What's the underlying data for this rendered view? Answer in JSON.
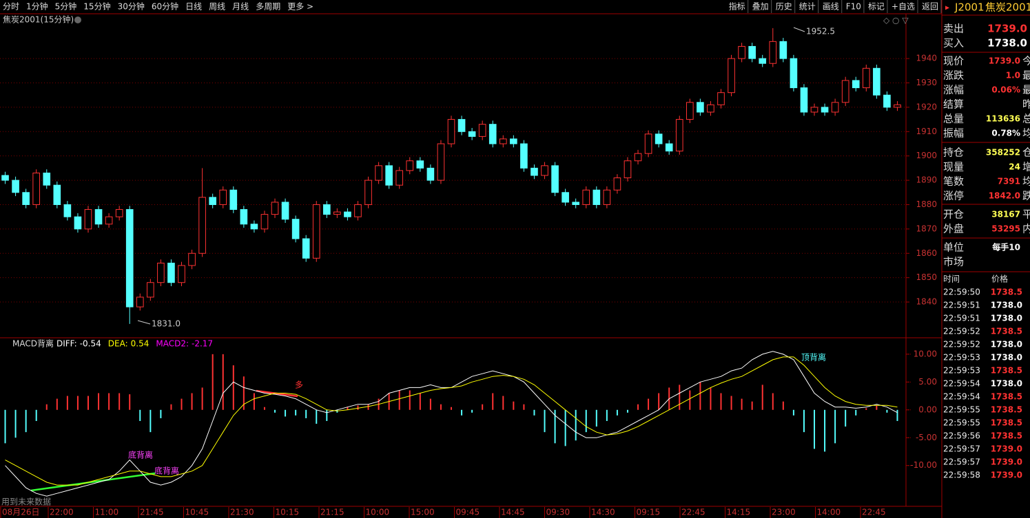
{
  "toolbar": {
    "periods": [
      "分时",
      "1分钟",
      "5分钟",
      "15分钟",
      "30分钟",
      "60分钟",
      "日线",
      "周线",
      "月线",
      "多周期",
      "更多 >"
    ],
    "active": 3,
    "tools": [
      "指标",
      "叠加",
      "历史",
      "统计",
      "画线",
      "F10",
      "标记",
      "+自选",
      "返回"
    ]
  },
  "main_chart": {
    "title": "焦炭2001(15分钟)",
    "ylim": [
      1825.6,
      1958.4
    ],
    "yticks": [
      1840,
      1850,
      1860,
      1870,
      1880,
      1890,
      1900,
      1910,
      1920,
      1930,
      1940
    ],
    "up_color": "#ff3232",
    "down_color": "#54ffff",
    "high_label": "1952.5",
    "low_label": "1831.0",
    "candles": [
      [
        1892,
        1893.5,
        1888.5,
        1890
      ],
      [
        1890,
        1891.5,
        1883.5,
        1885
      ],
      [
        1885,
        1886.5,
        1878.5,
        1880
      ],
      [
        1880,
        1894.5,
        1878.5,
        1893
      ],
      [
        1893,
        1894.5,
        1886.5,
        1888
      ],
      [
        1888,
        1889.5,
        1878.5,
        1880
      ],
      [
        1880,
        1881.5,
        1873.5,
        1875
      ],
      [
        1875,
        1876.5,
        1868.5,
        1870
      ],
      [
        1870,
        1879.5,
        1868.5,
        1878
      ],
      [
        1878,
        1879.5,
        1870.5,
        1872
      ],
      [
        1872,
        1876.5,
        1870.5,
        1875
      ],
      [
        1875,
        1879.5,
        1873.5,
        1878
      ],
      [
        1878,
        1879.5,
        1831,
        1838
      ],
      [
        1838,
        1843.5,
        1836.5,
        1842
      ],
      [
        1842,
        1849.5,
        1840.5,
        1848
      ],
      [
        1848,
        1857.5,
        1846.5,
        1856
      ],
      [
        1856,
        1857.5,
        1846.5,
        1848
      ],
      [
        1848,
        1856.5,
        1846.5,
        1855
      ],
      [
        1855,
        1861.5,
        1853.5,
        1860
      ],
      [
        1860,
        1895,
        1858.5,
        1883
      ],
      [
        1883,
        1884.5,
        1878.5,
        1880
      ],
      [
        1880,
        1887.5,
        1878.5,
        1886
      ],
      [
        1886,
        1887.5,
        1876.5,
        1878
      ],
      [
        1878,
        1879.5,
        1870.5,
        1872
      ],
      [
        1872,
        1873.5,
        1868.5,
        1870
      ],
      [
        1870,
        1877.5,
        1868.5,
        1876
      ],
      [
        1876,
        1882.5,
        1874.5,
        1881
      ],
      [
        1881,
        1882.5,
        1872.5,
        1874
      ],
      [
        1874,
        1875.5,
        1864.5,
        1866
      ],
      [
        1866,
        1867.5,
        1856.5,
        1858
      ],
      [
        1858,
        1881.5,
        1856.5,
        1880
      ],
      [
        1880,
        1881.5,
        1874.5,
        1876
      ],
      [
        1876,
        1878.5,
        1874.5,
        1877
      ],
      [
        1877,
        1878.5,
        1873.5,
        1875
      ],
      [
        1875,
        1881.5,
        1873.5,
        1880
      ],
      [
        1880,
        1891.5,
        1878.5,
        1890
      ],
      [
        1890,
        1897.5,
        1888.5,
        1896
      ],
      [
        1896,
        1897.5,
        1886.5,
        1888
      ],
      [
        1888,
        1895.5,
        1886.5,
        1894
      ],
      [
        1894,
        1899.5,
        1892.5,
        1898
      ],
      [
        1898,
        1899.5,
        1893.5,
        1895
      ],
      [
        1895,
        1896.5,
        1888.5,
        1890
      ],
      [
        1890,
        1906.5,
        1888.5,
        1905
      ],
      [
        1905,
        1916.5,
        1903.5,
        1915
      ],
      [
        1915,
        1916.5,
        1908.5,
        1910
      ],
      [
        1910,
        1911.5,
        1906.5,
        1908
      ],
      [
        1908,
        1914.5,
        1906.5,
        1913
      ],
      [
        1913,
        1914.5,
        1903.5,
        1905
      ],
      [
        1905,
        1908.5,
        1903.5,
        1907
      ],
      [
        1907,
        1908.5,
        1903.5,
        1905
      ],
      [
        1905,
        1906.5,
        1893.5,
        1895
      ],
      [
        1895,
        1896.5,
        1890.5,
        1892
      ],
      [
        1892,
        1897.5,
        1890.5,
        1896
      ],
      [
        1896,
        1897.5,
        1883.5,
        1885
      ],
      [
        1885,
        1886.5,
        1879.5,
        1881
      ],
      [
        1881,
        1882.5,
        1878.5,
        1880
      ],
      [
        1880,
        1887.5,
        1878.5,
        1886
      ],
      [
        1886,
        1887.5,
        1878.5,
        1880
      ],
      [
        1880,
        1887.5,
        1878.5,
        1886
      ],
      [
        1886,
        1892.5,
        1884.5,
        1891
      ],
      [
        1891,
        1899.5,
        1889.5,
        1898
      ],
      [
        1898,
        1902.5,
        1896.5,
        1901
      ],
      [
        1901,
        1910.5,
        1899.5,
        1909
      ],
      [
        1909,
        1910.5,
        1903.5,
        1905
      ],
      [
        1905,
        1906.5,
        1900.5,
        1902
      ],
      [
        1902,
        1916.5,
        1900.5,
        1915
      ],
      [
        1915,
        1923.5,
        1913.5,
        1922
      ],
      [
        1922,
        1923.5,
        1916.5,
        1918
      ],
      [
        1918,
        1922.5,
        1916.5,
        1921
      ],
      [
        1921,
        1927.5,
        1919.5,
        1926
      ],
      [
        1926,
        1941.5,
        1924.5,
        1940
      ],
      [
        1940,
        1946.5,
        1938.5,
        1945
      ],
      [
        1945,
        1946.5,
        1938.5,
        1940
      ],
      [
        1940,
        1941.5,
        1936.5,
        1938
      ],
      [
        1938,
        1952.5,
        1936.5,
        1947
      ],
      [
        1947,
        1948.5,
        1938.5,
        1940
      ],
      [
        1940,
        1941.5,
        1926.5,
        1928
      ],
      [
        1928,
        1929.5,
        1916.5,
        1918
      ],
      [
        1918,
        1921.5,
        1916.5,
        1920
      ],
      [
        1920,
        1921.5,
        1916.5,
        1918
      ],
      [
        1918,
        1923.5,
        1916.5,
        1922
      ],
      [
        1922,
        1932.5,
        1920.5,
        1931
      ],
      [
        1931,
        1932.5,
        1926.5,
        1928
      ],
      [
        1928,
        1937.5,
        1926.5,
        1936
      ],
      [
        1936,
        1937.5,
        1923.5,
        1925
      ],
      [
        1925,
        1926.5,
        1918.5,
        1920
      ],
      [
        1920,
        1922.5,
        1918.5,
        1921
      ]
    ]
  },
  "macd": {
    "title": "MACD背离",
    "indicators": [
      {
        "name": "DIFF:",
        "value": -0.54,
        "color": "#ffffff"
      },
      {
        "name": "DEA:",
        "value": 0.54,
        "color": "#ffff00"
      },
      {
        "name": "MACD2:",
        "value": -2.17,
        "color": "#ff00ff"
      }
    ],
    "ylim": [
      -17.2,
      12.7
    ],
    "yticks": [
      {
        "value": 10,
        "label": "10.00"
      },
      {
        "value": 5,
        "label": "5.00"
      },
      {
        "value": 0,
        "label": "0.00"
      },
      {
        "value": -5,
        "label": "-5.00"
      },
      {
        "value": -10,
        "label": "-10.00"
      }
    ],
    "histogram": [
      -6,
      -5,
      -4,
      -2,
      1,
      2,
      2.5,
      2.5,
      2.5,
      3,
      3,
      3,
      2.8,
      -2,
      -4,
      -1.5,
      1,
      2,
      3,
      4,
      10,
      10,
      8,
      6,
      3,
      0.5,
      -0.5,
      -1.2,
      -1,
      -1.5,
      -2.5,
      -2,
      -0.5,
      0.5,
      0.8,
      1,
      2,
      3,
      3.5,
      3.5,
      3,
      2,
      1,
      0.5,
      -1,
      -0.5,
      1,
      3,
      2.5,
      1.5,
      1,
      -1,
      -4,
      -6,
      -6.5,
      -5.5,
      -4,
      -3,
      -2,
      -1,
      -0.5,
      1,
      2,
      3,
      4,
      4.5,
      3.5,
      5,
      4,
      3,
      2.5,
      2,
      1.5,
      4.5,
      3,
      1.5,
      -1,
      -4,
      -7,
      -7.5,
      -6,
      -3,
      -1,
      0.3,
      0.8,
      -0.5,
      -2
    ],
    "diff": [
      -10,
      -12,
      -14,
      -15,
      -15.5,
      -15,
      -14.5,
      -14,
      -13.5,
      -13,
      -12.5,
      -11,
      -9,
      -11,
      -13,
      -13.5,
      -13,
      -12,
      -10,
      -7,
      -2,
      3,
      5,
      4,
      3.5,
      3,
      2.8,
      2.5,
      2,
      1,
      0,
      -0.5,
      0,
      0.5,
      1,
      1,
      1.5,
      3,
      3.5,
      4,
      4,
      4.5,
      4,
      4,
      5,
      6,
      6.5,
      7,
      6.5,
      6,
      5,
      3,
      1,
      -1,
      -2.5,
      -4,
      -5,
      -5,
      -4.5,
      -4,
      -3,
      -2,
      -1,
      0,
      2,
      3,
      4,
      5,
      5.5,
      6,
      7,
      7.5,
      9,
      10,
      10.5,
      10,
      9,
      6,
      3,
      1.5,
      0.5,
      0.5,
      0.3,
      0.5,
      1,
      0.5,
      -0.5
    ],
    "dea": [
      -9,
      -10,
      -11,
      -12,
      -13,
      -13.5,
      -13.5,
      -13.5,
      -13,
      -12.5,
      -12,
      -11.5,
      -11,
      -11,
      -11.5,
      -12,
      -12,
      -11.5,
      -11,
      -10,
      -7,
      -4,
      -1,
      1,
      2,
      2.5,
      3,
      3,
      2.8,
      2,
      1,
      0,
      -0.2,
      0,
      0.3,
      0.6,
      1,
      1.5,
      2,
      2.5,
      3,
      3.5,
      3.8,
      4,
      4.3,
      5,
      5.5,
      6,
      6.2,
      6,
      5.5,
      4.5,
      3,
      1.5,
      0,
      -1.5,
      -3,
      -4,
      -4.5,
      -4.3,
      -3.8,
      -3,
      -2,
      -1,
      0,
      1,
      2,
      3,
      4,
      4.8,
      5.5,
      6,
      7,
      8,
      9,
      9.5,
      9.5,
      8,
      6,
      4,
      2.5,
      1.5,
      1,
      0.8,
      0.8,
      0.8,
      0.5
    ],
    "annotations": [
      "多",
      "底背离",
      "底背离",
      "顶背离",
      "用到未来数据"
    ]
  },
  "time_axis": [
    "08月26日",
    "22:00",
    "11:00",
    "21:45",
    "10:45",
    "21:30",
    "10:15",
    "21:15",
    "10:00",
    "15:00",
    "09:45",
    "14:45",
    "09:30",
    "14:30",
    "09:15",
    "22:45",
    "14:15",
    "23:00",
    "14:00",
    "22:45"
  ],
  "quote": {
    "code": "J2001",
    "name": "焦炭2001",
    "book": [
      [
        "卖出",
        "1739.0",
        "#ff3232"
      ],
      [
        "买入",
        "1738.0",
        "#ffffff"
      ]
    ],
    "rows": [
      [
        "现价",
        "1739.0",
        "今",
        "#ff3232"
      ],
      [
        "涨跌",
        "1.0",
        "最",
        "#ff3232"
      ],
      [
        "涨幅",
        "0.06%",
        "最",
        "#ff3232"
      ],
      [
        "结算",
        "",
        "昨",
        "#ffffff"
      ],
      [
        "总量",
        "113636",
        "总",
        "#ffff54"
      ],
      [
        "振幅",
        "0.78%",
        "均",
        "#ffffff"
      ],
      [
        "持仓",
        "358252",
        "仓",
        "#ffff54"
      ],
      [
        "现量",
        "24",
        "增",
        "#ffff54"
      ],
      [
        "笔数",
        "7391",
        "均",
        "#ff3232"
      ],
      [
        "涨停",
        "1842.0",
        "跌",
        "#ff3232"
      ],
      [
        "开仓",
        "38167",
        "平",
        "#ffff54"
      ],
      [
        "外盘",
        "53295",
        "内",
        "#ff3232"
      ],
      [
        "单位",
        "每手10",
        "",
        "#ffffff"
      ],
      [
        "市场",
        "",
        "",
        "#ffffff"
      ]
    ],
    "ticks_header": [
      "时间",
      "价格"
    ],
    "ticks": [
      [
        "22:59:50",
        "1738.5",
        "#ff3232"
      ],
      [
        "22:59:51",
        "1738.0",
        "#ffffff"
      ],
      [
        "22:59:51",
        "1738.0",
        "#ffffff"
      ],
      [
        "22:59:52",
        "1738.5",
        "#ff3232"
      ],
      [
        "22:59:52",
        "1738.0",
        "#ffffff"
      ],
      [
        "22:59:53",
        "1738.0",
        "#ffffff"
      ],
      [
        "22:59:53",
        "1738.5",
        "#ff3232"
      ],
      [
        "22:59:54",
        "1738.0",
        "#ffffff"
      ],
      [
        "22:59:54",
        "1738.5",
        "#ff3232"
      ],
      [
        "22:59:55",
        "1738.5",
        "#ff3232"
      ],
      [
        "22:59:55",
        "1738.5",
        "#ff3232"
      ],
      [
        "22:59:56",
        "1738.5",
        "#ff3232"
      ],
      [
        "22:59:57",
        "1739.0",
        "#ff3232"
      ],
      [
        "22:59:57",
        "1739.0",
        "#ff3232"
      ],
      [
        "22:59:58",
        "1739.0",
        "#ff3232"
      ]
    ]
  }
}
